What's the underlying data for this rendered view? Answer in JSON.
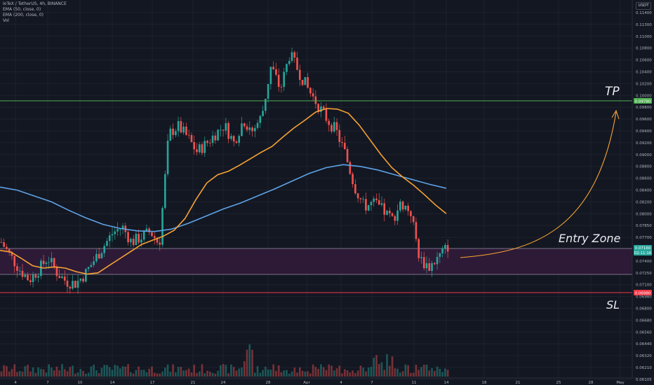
{
  "legend": {
    "symbol_line": "IoTeX / TetherUS, 4h, BINANCE",
    "ema50_line": "EMA (50, close, 0)",
    "ema200_line": "EMA (200, close, 0)",
    "vol_line": "Vol"
  },
  "price_axis": {
    "unit": "USDT",
    "ticks": [
      "0.11400",
      "0.11300",
      "0.11000",
      "0.10800",
      "0.10600",
      "0.10400",
      "0.10200",
      "0.10000",
      "0.09800",
      "0.09600",
      "0.09400",
      "0.09200",
      "0.09000",
      "0.08800",
      "0.08600",
      "0.08400",
      "0.08200",
      "0.08000",
      "0.07850",
      "0.07700",
      "0.07550",
      "0.07400",
      "0.07250",
      "0.07100",
      "0.06980",
      "0.06800",
      "0.06680",
      "0.06560",
      "0.06440",
      "0.06320",
      "0.06210",
      "0.06105"
    ],
    "tp_label": "0.09780",
    "entry_label": "0.07160",
    "entry_sub_label": "02:11:16",
    "sl_label": "0.06980"
  },
  "time_axis": {
    "labels": [
      "4",
      "7",
      "10",
      "14",
      "17",
      "21",
      "24",
      "28",
      "Apr",
      "4",
      "7",
      "11",
      "14",
      "18",
      "21",
      "25",
      "28",
      "May"
    ]
  },
  "annotations": {
    "tp": "TP",
    "entry": "Entry Zone",
    "sl": "SL"
  },
  "colors": {
    "background": "#131722",
    "tp_line": "#4caf50",
    "sl_line": "#f23645",
    "entry_zone": "#311b3a",
    "ema50": "#f7a233",
    "ema200": "#5ea3e6",
    "up": "#26a69a",
    "down": "#ef5350",
    "arrow": "#f7a233"
  },
  "chart_data": {
    "type": "candlestick",
    "symbol": "IoTeX / TetherUS",
    "timeframe": "4h",
    "exchange": "BINANCE",
    "levels": {
      "tp": 0.0978,
      "entry_top": 0.0716,
      "entry_bottom": 0.0713,
      "sl": 0.0698
    },
    "ylim": [
      0.0605,
      0.1145
    ],
    "x_dates": [
      "4",
      "7",
      "10",
      "14",
      "17",
      "21",
      "24",
      "28",
      "Apr",
      "4",
      "7",
      "11",
      "14"
    ],
    "close_path": [
      0.0752,
      0.0728,
      0.0705,
      0.0688,
      0.0705,
      0.0726,
      0.07,
      0.0685,
      0.0682,
      0.0698,
      0.0722,
      0.0745,
      0.0768,
      0.0778,
      0.0752,
      0.076,
      0.077,
      0.0748,
      0.0935,
      0.0948,
      0.093,
      0.0905,
      0.0918,
      0.0935,
      0.095,
      0.092,
      0.0958,
      0.094,
      0.0965,
      0.105,
      0.101,
      0.107,
      0.104,
      0.101,
      0.0985,
      0.096,
      0.094,
      0.09,
      0.0845,
      0.0812,
      0.0818,
      0.0806,
      0.079,
      0.0818,
      0.0804,
      0.0722,
      0.071,
      0.0726,
      0.0745
    ],
    "ema50_path": [
      0.0738,
      0.0735,
      0.0724,
      0.0712,
      0.0708,
      0.071,
      0.0708,
      0.0702,
      0.0698,
      0.07,
      0.0712,
      0.0724,
      0.0736,
      0.0748,
      0.0755,
      0.0762,
      0.0772,
      0.0792,
      0.0824,
      0.0852,
      0.0866,
      0.0872,
      0.0882,
      0.0893,
      0.0904,
      0.0914,
      0.093,
      0.0945,
      0.0958,
      0.0972,
      0.0978,
      0.0977,
      0.097,
      0.095,
      0.0925,
      0.09,
      0.0878,
      0.0862,
      0.0848,
      0.0832,
      0.0815,
      0.08
    ],
    "ema200_path": [
      0.0845,
      0.084,
      0.083,
      0.082,
      0.0806,
      0.0793,
      0.0782,
      0.0775,
      0.0771,
      0.077,
      0.0774,
      0.0784,
      0.0796,
      0.0808,
      0.0818,
      0.083,
      0.0842,
      0.0855,
      0.0868,
      0.0878,
      0.0883,
      0.088,
      0.0874,
      0.0866,
      0.0858,
      0.085,
      0.0843
    ]
  }
}
